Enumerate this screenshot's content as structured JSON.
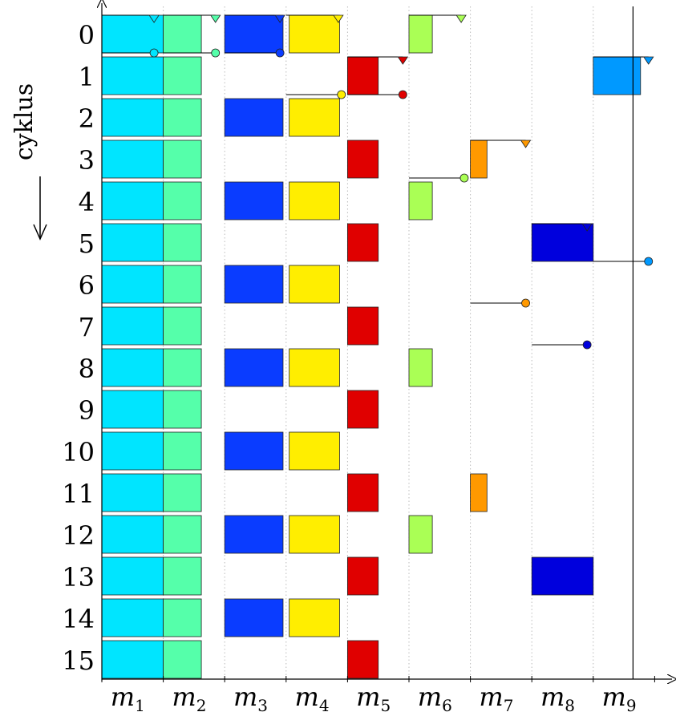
{
  "ylabel": "cyklus",
  "rows": [
    "0",
    "1",
    "2",
    "3",
    "4",
    "5",
    "6",
    "7",
    "8",
    "9",
    "10",
    "11",
    "12",
    "13",
    "14",
    "15"
  ],
  "machines": [
    {
      "base": "m",
      "sub": "1"
    },
    {
      "base": "m",
      "sub": "2"
    },
    {
      "base": "m",
      "sub": "3"
    },
    {
      "base": "m",
      "sub": "4"
    },
    {
      "base": "m",
      "sub": "5"
    },
    {
      "base": "m",
      "sub": "6"
    },
    {
      "base": "m",
      "sub": "7"
    },
    {
      "base": "m",
      "sub": "8"
    },
    {
      "base": "m",
      "sub": "9"
    }
  ],
  "colors": {
    "m1": "#00e5ff",
    "m2": "#55ffaa",
    "m3": "#0a3cff",
    "m4": "#ffee00",
    "m5": "#e00000",
    "m6": "#aaff55",
    "m7": "#ff9900",
    "m8": "#0000dd",
    "m9": "#0099ff"
  },
  "blocks": [
    {
      "m": 1,
      "rows": [
        0,
        1,
        2,
        3,
        4,
        5,
        6,
        7,
        8,
        9,
        10,
        11,
        12,
        13,
        14,
        15
      ],
      "start": 0,
      "len": 1
    },
    {
      "m": 2,
      "rows": [
        0,
        1,
        2,
        3,
        4,
        5,
        6,
        7,
        8,
        9,
        10,
        11,
        12,
        13,
        14,
        15
      ],
      "start": 0,
      "len": 0.62
    },
    {
      "m": 3,
      "rows": [
        0,
        2,
        4,
        6,
        8,
        10,
        12,
        14
      ],
      "start": 0,
      "len": 0.95
    },
    {
      "m": 4,
      "rows": [
        0,
        2,
        4,
        6,
        8,
        10,
        12,
        14
      ],
      "start": 0.05,
      "len": 0.82
    },
    {
      "m": 5,
      "rows": [
        1,
        3,
        5,
        7,
        9,
        11,
        13,
        15
      ],
      "start": 0,
      "len": 0.5
    },
    {
      "m": 6,
      "rows": [
        0,
        4,
        8,
        12
      ],
      "start": 0,
      "len": 0.38
    },
    {
      "m": 7,
      "rows": [
        3,
        11
      ],
      "start": 0,
      "len": 0.27
    },
    {
      "m": 8,
      "rows": [
        5,
        13
      ],
      "start": 0,
      "len": 1
    },
    {
      "m": 9,
      "rows": [
        1
      ],
      "start": 0,
      "len": 0.77
    }
  ],
  "transfers": [
    {
      "m": 1,
      "row": 0,
      "triangle": 0.85,
      "circle": 0.85
    },
    {
      "m": 2,
      "row": 0,
      "triangle": 1.85,
      "circle": 1.85
    },
    {
      "m": 3,
      "row": 0,
      "triangle": 2.9,
      "circle": 2.9
    },
    {
      "m": 4,
      "row": 0,
      "triangle": 3.85,
      "row_circle": 1,
      "circle": 3.9
    },
    {
      "m": 5,
      "row": 1,
      "triangle": 4.9,
      "circle": 4.9
    },
    {
      "m": 6,
      "row": 0,
      "triangle": 5.85,
      "row_circle": 3,
      "circle": 5.9
    },
    {
      "m": 7,
      "row": 3,
      "triangle": 6.9,
      "row_circle": 6,
      "circle": 6.9
    },
    {
      "m": 8,
      "row": 5,
      "triangle": 7.9,
      "row_circle": 7,
      "circle": 7.9
    },
    {
      "m": 9,
      "row": 1,
      "triangle": 8.9,
      "row_circle": 5,
      "circle": 8.9
    }
  ]
}
